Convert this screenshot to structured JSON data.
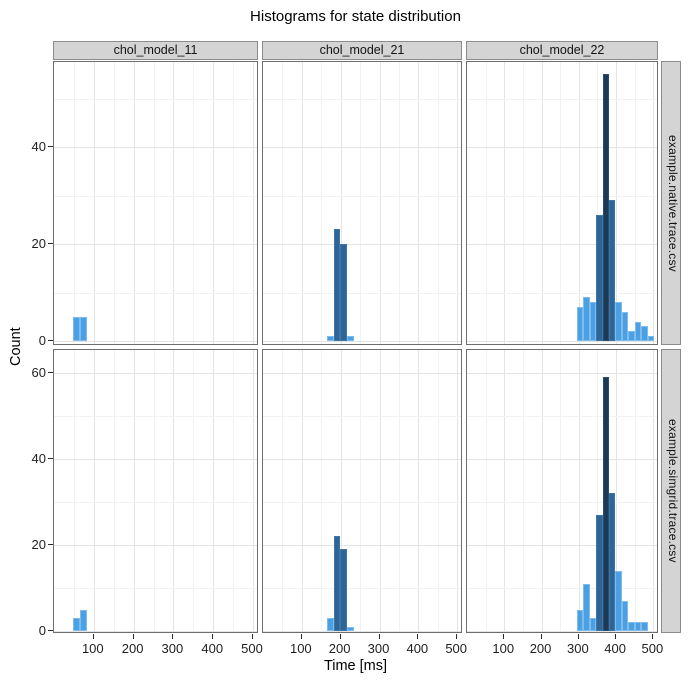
{
  "chart_data": {
    "type": "histogram",
    "title": "Histograms for state distribution",
    "xlabel": "Time [ms]",
    "ylabel": "Count",
    "legend": "none",
    "grid": "on",
    "x_ticks": [
      100,
      200,
      300,
      400,
      500
    ],
    "x_minor_ticks": [
      50,
      150,
      250,
      350,
      450
    ],
    "xlim": [
      0,
      515
    ],
    "bin_width_ms": 17.2,
    "col_facets": [
      "chol_model_11",
      "chol_model_21",
      "chol_model_22"
    ],
    "row_facets": [
      "example.native.trace.csv",
      "example.simgrid.trace.csv"
    ],
    "colors": {
      "light": "#4BA0E4",
      "medium": "#2F6496",
      "dark": "#1C3A55",
      "light_border": "#7FBCEE",
      "medium_border": "#3E76A8",
      "dark_border": "#2A4C6E",
      "strip_bg": "#D4D4D4",
      "strip_border": "#8C8C8C",
      "panel_border": "#6E6E6E",
      "grid_major": "#E4E4E4",
      "grid_minor": "#F2F2F2"
    },
    "rows": [
      {
        "facet": "example.native.trace.csv",
        "y_ticks": [
          0,
          20,
          40
        ],
        "y_minor_ticks": [
          10,
          30,
          50
        ],
        "panels": [
          {
            "facet": "chol_model_11",
            "bars": [
              {
                "x": 48,
                "count": 5,
                "shade": "light"
              },
              {
                "x": 65.2,
                "count": 5,
                "shade": "light"
              }
            ]
          },
          {
            "facet": "chol_model_21",
            "bars": [
              {
                "x": 164.8,
                "count": 1,
                "shade": "light"
              },
              {
                "x": 182,
                "count": 23,
                "shade": "medium"
              },
              {
                "x": 199.2,
                "count": 20,
                "shade": "medium"
              },
              {
                "x": 216.4,
                "count": 1,
                "shade": "light"
              }
            ]
          },
          {
            "facet": "chol_model_22",
            "bars": [
              {
                "x": 295,
                "count": 7,
                "shade": "light"
              },
              {
                "x": 312.2,
                "count": 9,
                "shade": "light"
              },
              {
                "x": 329.4,
                "count": 8,
                "shade": "light"
              },
              {
                "x": 346.6,
                "count": 26,
                "shade": "medium"
              },
              {
                "x": 363.8,
                "count": 55,
                "shade": "dark"
              },
              {
                "x": 381,
                "count": 29,
                "shade": "medium"
              },
              {
                "x": 398.2,
                "count": 8,
                "shade": "light"
              },
              {
                "x": 415.4,
                "count": 6,
                "shade": "light"
              },
              {
                "x": 432.6,
                "count": 2,
                "shade": "light"
              },
              {
                "x": 449.8,
                "count": 4,
                "shade": "light"
              },
              {
                "x": 467,
                "count": 3,
                "shade": "light"
              },
              {
                "x": 484.2,
                "count": 1,
                "shade": "light"
              }
            ]
          }
        ]
      },
      {
        "facet": "example.simgrid.trace.csv",
        "y_ticks": [
          0,
          20,
          40,
          60
        ],
        "y_minor_ticks": [
          10,
          30,
          50
        ],
        "panels": [
          {
            "facet": "chol_model_11",
            "bars": [
              {
                "x": 48,
                "count": 3,
                "shade": "light"
              },
              {
                "x": 65.2,
                "count": 5,
                "shade": "light"
              }
            ]
          },
          {
            "facet": "chol_model_21",
            "bars": [
              {
                "x": 164.8,
                "count": 3,
                "shade": "light"
              },
              {
                "x": 182,
                "count": 22,
                "shade": "medium"
              },
              {
                "x": 199.2,
                "count": 19,
                "shade": "medium"
              },
              {
                "x": 216.4,
                "count": 1,
                "shade": "light"
              }
            ]
          },
          {
            "facet": "chol_model_22",
            "bars": [
              {
                "x": 295,
                "count": 5,
                "shade": "light"
              },
              {
                "x": 312.2,
                "count": 11,
                "shade": "light"
              },
              {
                "x": 329.4,
                "count": 3,
                "shade": "light"
              },
              {
                "x": 346.6,
                "count": 27,
                "shade": "medium"
              },
              {
                "x": 363.8,
                "count": 59,
                "shade": "dark"
              },
              {
                "x": 381,
                "count": 32,
                "shade": "medium"
              },
              {
                "x": 398.2,
                "count": 14,
                "shade": "light"
              },
              {
                "x": 415.4,
                "count": 7,
                "shade": "light"
              },
              {
                "x": 432.6,
                "count": 2,
                "shade": "light"
              },
              {
                "x": 449.8,
                "count": 2,
                "shade": "light"
              },
              {
                "x": 467,
                "count": 2,
                "shade": "light"
              }
            ]
          }
        ]
      }
    ]
  }
}
